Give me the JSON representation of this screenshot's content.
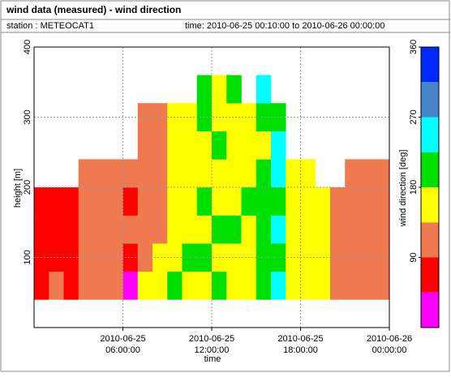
{
  "header": {
    "title": "wind data (measured) - wind direction",
    "station": "station : METEOCAT1",
    "time": "time: 2010-06-25 00:10:00 to 2010-06-26 00:00:00"
  },
  "chart_data": {
    "type": "heatmap",
    "x_label": "time",
    "y_label": "height [m]",
    "x": [
      0,
      1,
      2,
      3,
      4,
      5,
      6,
      7,
      8,
      9,
      10,
      11,
      12,
      13,
      14,
      15,
      16,
      17,
      18,
      19,
      20,
      21,
      22,
      23
    ],
    "y": [
      40,
      80,
      120,
      160,
      200,
      240,
      280,
      320
    ],
    "values": [
      [
        70,
        70,
        70,
        70,
        null,
        null,
        null,
        null
      ],
      [
        110,
        70,
        70,
        70,
        null,
        null,
        null,
        null
      ],
      [
        70,
        70,
        70,
        70,
        null,
        null,
        null,
        null
      ],
      [
        110,
        110,
        110,
        110,
        110,
        null,
        null,
        null
      ],
      [
        110,
        110,
        110,
        110,
        110,
        null,
        null,
        null
      ],
      [
        110,
        110,
        110,
        110,
        110,
        null,
        null,
        null
      ],
      [
        20,
        70,
        110,
        70,
        110,
        null,
        null,
        null
      ],
      [
        160,
        110,
        110,
        110,
        110,
        110,
        110,
        null
      ],
      [
        160,
        160,
        110,
        110,
        110,
        110,
        110,
        null
      ],
      [
        200,
        160,
        160,
        160,
        160,
        160,
        160,
        null
      ],
      [
        160,
        200,
        160,
        160,
        160,
        160,
        160,
        null
      ],
      [
        160,
        200,
        160,
        200,
        160,
        160,
        200,
        200
      ],
      [
        200,
        160,
        200,
        160,
        160,
        200,
        160,
        160
      ],
      [
        160,
        160,
        200,
        160,
        160,
        160,
        160,
        200
      ],
      [
        160,
        160,
        160,
        200,
        160,
        160,
        160,
        null
      ],
      [
        200,
        200,
        200,
        200,
        200,
        160,
        200,
        245
      ],
      [
        245,
        200,
        245,
        200,
        245,
        245,
        200,
        null
      ],
      [
        160,
        160,
        160,
        160,
        160,
        null,
        null,
        null
      ],
      [
        160,
        160,
        160,
        160,
        160,
        null,
        null,
        null
      ],
      [
        160,
        160,
        160,
        160,
        null,
        null,
        null,
        null
      ],
      [
        110,
        110,
        110,
        110,
        null,
        null,
        null,
        null
      ],
      [
        110,
        110,
        110,
        110,
        110,
        null,
        null,
        null
      ],
      [
        110,
        110,
        110,
        110,
        110,
        null,
        null,
        null
      ],
      [
        110,
        110,
        110,
        110,
        110,
        null,
        null,
        null
      ]
    ],
    "xlim": [
      0,
      24
    ],
    "ylim": [
      0,
      400
    ],
    "xticks": [
      {
        "value": 6,
        "label": "2010-06-25 06:00:00"
      },
      {
        "value": 12,
        "label": "2010-06-25 12:00:00"
      },
      {
        "value": 18,
        "label": "2010-06-25 18:00:00"
      },
      {
        "value": 24,
        "label": "2010-06-26 00:00:00"
      }
    ],
    "yticks": [
      100,
      200,
      300,
      400
    ],
    "grid": true,
    "colorbar": {
      "label": "wind direction [deg]",
      "bins": [
        0,
        45,
        90,
        135,
        180,
        225,
        270,
        315,
        360
      ],
      "colors": [
        "#ff00ff",
        "#ff0000",
        "#f07a50",
        "#ffff00",
        "#00e000",
        "#00ffff",
        "#4682c8",
        "#0028ff"
      ],
      "ticks": [
        90,
        180,
        270,
        360
      ]
    }
  }
}
